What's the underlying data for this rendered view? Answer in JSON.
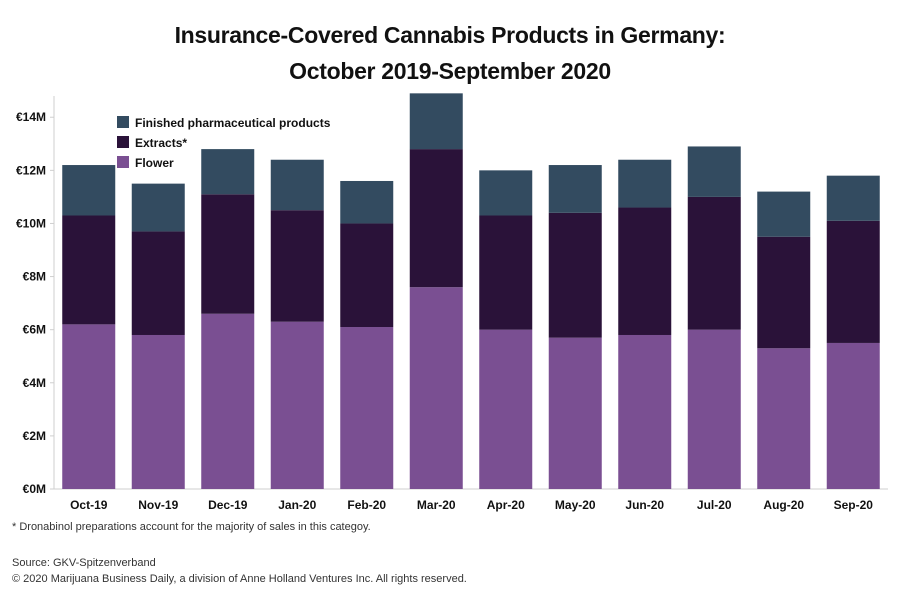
{
  "title_line1": "Insurance-Covered Cannabis Products in Germany:",
  "title_line2": "October 2019-September 2020",
  "footnote": "* Dronabinol preparations account for the majority of sales in this categoy.",
  "source": "Source: GKV-Spitzenverband",
  "copyright": "© 2020 Marijuana Business Daily, a division of Anne Holland Ventures Inc. All rights reserved.",
  "colors": {
    "finished": "#334b60",
    "extracts": "#2a1239",
    "flower": "#7a4f92"
  },
  "chart_data": {
    "type": "bar",
    "stacked": true,
    "categories": [
      "Oct-19",
      "Nov-19",
      "Dec-19",
      "Jan-20",
      "Feb-20",
      "Mar-20",
      "Apr-20",
      "May-20",
      "Jun-20",
      "Jul-20",
      "Aug-20",
      "Sep-20"
    ],
    "series": [
      {
        "name": "Flower",
        "values": [
          6.2,
          5.8,
          6.6,
          6.3,
          6.1,
          7.6,
          6.0,
          5.7,
          5.8,
          6.0,
          5.3,
          5.5
        ]
      },
      {
        "name": "Extracts*",
        "values": [
          4.1,
          3.9,
          4.5,
          4.2,
          3.9,
          5.2,
          4.3,
          4.7,
          4.8,
          5.0,
          4.2,
          4.6
        ]
      },
      {
        "name": "Finished pharmaceutical products",
        "values": [
          1.9,
          1.8,
          1.7,
          1.9,
          1.6,
          2.1,
          1.7,
          1.8,
          1.8,
          1.9,
          1.7,
          1.7
        ]
      }
    ],
    "yticks": [
      "€0M",
      "€2M",
      "€4M",
      "€6M",
      "€8M",
      "€10M",
      "€12M",
      "€14M"
    ],
    "ytick_values": [
      0,
      2,
      4,
      6,
      8,
      10,
      12,
      14
    ],
    "ylim": [
      0,
      14.8
    ],
    "unit": "€ millions",
    "legend": [
      {
        "label": "Finished pharmaceutical products",
        "color_key": "finished"
      },
      {
        "label": "Extracts*",
        "color_key": "extracts"
      },
      {
        "label": "Flower",
        "color_key": "flower"
      }
    ],
    "legend_position": "top-left",
    "grid": false
  }
}
